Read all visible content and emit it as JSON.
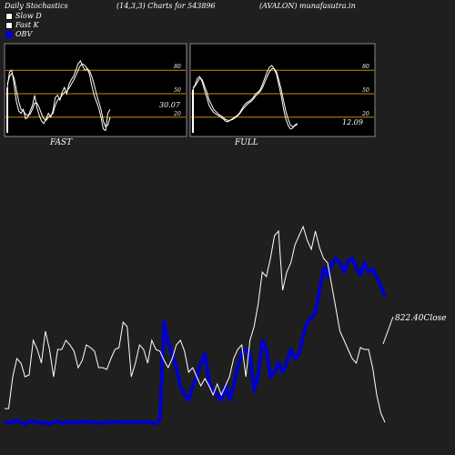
{
  "header": {
    "title": "Daily Stochastics",
    "params": "(14,3,3) Charts for 543896",
    "source": "(AVALON) munafasutra.in"
  },
  "legend": [
    {
      "label": "Slow  D"
    },
    {
      "label": "Fast K"
    },
    {
      "label": "OBV"
    }
  ],
  "panels": {
    "fast_label": "FAST",
    "full_label": "FULL"
  },
  "colors": {
    "background": "#1f1f1f",
    "panel_background": "#000000",
    "panel_border": "#888888",
    "reference_lines": "#cc8800",
    "stoch_lines": "#ffffff",
    "obv_line": "#0000cc",
    "price_line": "#ffffff"
  },
  "chart_data": [
    {
      "type": "line",
      "name": "fast-stochastic",
      "ylim": [
        0,
        100
      ],
      "ticks": [
        {
          "value": 80,
          "label": "80"
        },
        {
          "value": 50,
          "label": "50"
        },
        {
          "value": 20,
          "label": "20"
        }
      ],
      "reference_lines": [
        80,
        50,
        20
      ],
      "last_value_label": "30.07",
      "series": [
        {
          "key": "k",
          "values": [
            58,
            78,
            80,
            62,
            40,
            28,
            25,
            30,
            18,
            20,
            28,
            35,
            48,
            32,
            22,
            15,
            12,
            18,
            25,
            20,
            28,
            45,
            48,
            42,
            52,
            58,
            50,
            62,
            68,
            72,
            80,
            88,
            92,
            85,
            80,
            82,
            75,
            60,
            48,
            40,
            32,
            20,
            5,
            3,
            25,
            30
          ]
        },
        {
          "key": "d",
          "values": [
            62,
            72,
            76,
            70,
            55,
            40,
            30,
            28,
            24,
            22,
            24,
            30,
            38,
            38,
            32,
            24,
            18,
            16,
            20,
            22,
            25,
            35,
            42,
            44,
            48,
            52,
            53,
            57,
            62,
            67,
            73,
            80,
            86,
            88,
            86,
            82,
            79,
            72,
            62,
            50,
            40,
            30,
            15,
            8,
            10,
            20
          ]
        }
      ]
    },
    {
      "type": "line",
      "name": "full-stochastic",
      "ylim": [
        0,
        100
      ],
      "ticks": [
        {
          "value": 80,
          "label": "80"
        },
        {
          "value": 50,
          "label": "50"
        },
        {
          "value": 20,
          "label": "20"
        }
      ],
      "reference_lines": [
        80,
        50,
        20
      ],
      "last_value_label": "12.09",
      "series": [
        {
          "key": "k",
          "values": [
            55,
            62,
            70,
            72,
            65,
            55,
            45,
            35,
            30,
            26,
            24,
            22,
            20,
            18,
            15,
            14,
            16,
            18,
            20,
            22,
            25,
            30,
            35,
            38,
            40,
            42,
            45,
            50,
            52,
            55,
            62,
            70,
            78,
            84,
            86,
            82,
            75,
            62,
            48,
            32,
            18,
            10,
            5,
            6,
            10,
            12
          ]
        },
        {
          "key": "d",
          "values": [
            58,
            60,
            65,
            70,
            68,
            60,
            52,
            42,
            36,
            30,
            27,
            24,
            22,
            20,
            17,
            16,
            16,
            17,
            19,
            21,
            24,
            28,
            32,
            35,
            38,
            40,
            43,
            47,
            50,
            53,
            58,
            65,
            72,
            78,
            82,
            82,
            78,
            68,
            56,
            42,
            28,
            18,
            10,
            8,
            9,
            11
          ]
        }
      ]
    },
    {
      "type": "line",
      "name": "obv-and-price",
      "last_value_label": "822.40Close",
      "series": [
        {
          "key": "price",
          "values": [
            45,
            45,
            80,
            100,
            95,
            80,
            82,
            120,
            110,
            95,
            130,
            110,
            80,
            110,
            110,
            120,
            115,
            108,
            90,
            98,
            115,
            112,
            108,
            90,
            90,
            88,
            100,
            110,
            112,
            140,
            135,
            80,
            95,
            115,
            110,
            95,
            120,
            110,
            108,
            98,
            90,
            100,
            115,
            120,
            108,
            85,
            90,
            80,
            70,
            78,
            70,
            60,
            72,
            60,
            70,
            80,
            100,
            110,
            115,
            80,
            120,
            135,
            160,
            195,
            190,
            210,
            235,
            240,
            175,
            195,
            205,
            225,
            235,
            245,
            230,
            220,
            240,
            222,
            210,
            205,
            180,
            155,
            130,
            120,
            110,
            100,
            95,
            112,
            110,
            110,
            90,
            60,
            40,
            30
          ]
        },
        {
          "key": "obv",
          "values": [
            30,
            30,
            30,
            32,
            30,
            28,
            30,
            31,
            30,
            29,
            30,
            28,
            30,
            31,
            29,
            30,
            30,
            30,
            29,
            31,
            30,
            30,
            30,
            29,
            30,
            30,
            30,
            30,
            31,
            30,
            30,
            30,
            30,
            30,
            30,
            30,
            30,
            28,
            33,
            140,
            118,
            105,
            90,
            70,
            60,
            55,
            70,
            80,
            95,
            105,
            75,
            65,
            60,
            55,
            70,
            55,
            70,
            90,
            105,
            110,
            105,
            65,
            80,
            120,
            110,
            80,
            85,
            95,
            85,
            95,
            110,
            100,
            105,
            125,
            140,
            145,
            150,
            175,
            200,
            190,
            205,
            210,
            205,
            195,
            208,
            210,
            200,
            192,
            205,
            195,
            198,
            190,
            180,
            168
          ]
        }
      ]
    }
  ]
}
